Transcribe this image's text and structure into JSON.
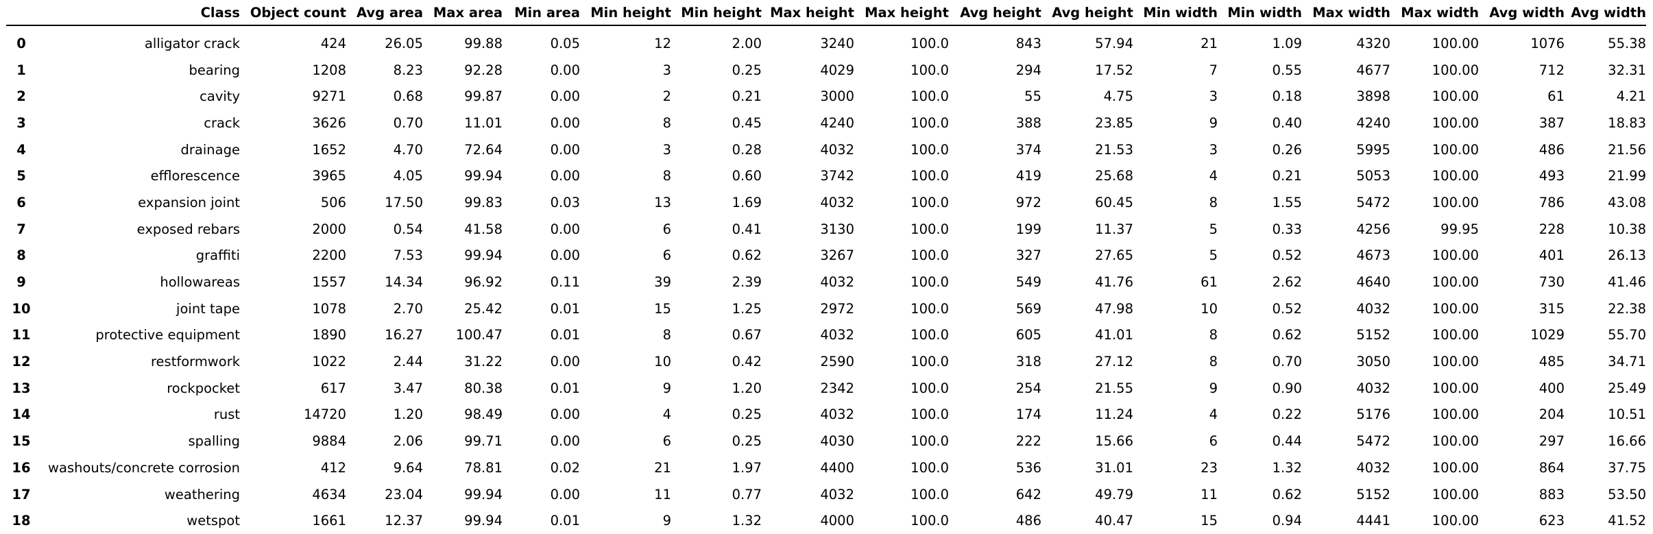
{
  "table": {
    "columns": [
      "",
      "Class",
      "Object count",
      "Avg area",
      "Max area",
      "Min area",
      "Min height",
      "Min height",
      "Max height",
      "Max height",
      "Avg height",
      "Avg height",
      "Min width",
      "Min width",
      "Max width",
      "Max width",
      "Avg width",
      "Avg width"
    ],
    "rows": [
      [
        "0",
        "alligator crack",
        "424",
        "26.05",
        "99.88",
        "0.05",
        "12",
        "2.00",
        "3240",
        "100.0",
        "843",
        "57.94",
        "21",
        "1.09",
        "4320",
        "100.00",
        "1076",
        "55.38"
      ],
      [
        "1",
        "bearing",
        "1208",
        "8.23",
        "92.28",
        "0.00",
        "3",
        "0.25",
        "4029",
        "100.0",
        "294",
        "17.52",
        "7",
        "0.55",
        "4677",
        "100.00",
        "712",
        "32.31"
      ],
      [
        "2",
        "cavity",
        "9271",
        "0.68",
        "99.87",
        "0.00",
        "2",
        "0.21",
        "3000",
        "100.0",
        "55",
        "4.75",
        "3",
        "0.18",
        "3898",
        "100.00",
        "61",
        "4.21"
      ],
      [
        "3",
        "crack",
        "3626",
        "0.70",
        "11.01",
        "0.00",
        "8",
        "0.45",
        "4240",
        "100.0",
        "388",
        "23.85",
        "9",
        "0.40",
        "4240",
        "100.00",
        "387",
        "18.83"
      ],
      [
        "4",
        "drainage",
        "1652",
        "4.70",
        "72.64",
        "0.00",
        "3",
        "0.28",
        "4032",
        "100.0",
        "374",
        "21.53",
        "3",
        "0.26",
        "5995",
        "100.00",
        "486",
        "21.56"
      ],
      [
        "5",
        "efflorescence",
        "3965",
        "4.05",
        "99.94",
        "0.00",
        "8",
        "0.60",
        "3742",
        "100.0",
        "419",
        "25.68",
        "4",
        "0.21",
        "5053",
        "100.00",
        "493",
        "21.99"
      ],
      [
        "6",
        "expansion joint",
        "506",
        "17.50",
        "99.83",
        "0.03",
        "13",
        "1.69",
        "4032",
        "100.0",
        "972",
        "60.45",
        "8",
        "1.55",
        "5472",
        "100.00",
        "786",
        "43.08"
      ],
      [
        "7",
        "exposed rebars",
        "2000",
        "0.54",
        "41.58",
        "0.00",
        "6",
        "0.41",
        "3130",
        "100.0",
        "199",
        "11.37",
        "5",
        "0.33",
        "4256",
        "99.95",
        "228",
        "10.38"
      ],
      [
        "8",
        "graffiti",
        "2200",
        "7.53",
        "99.94",
        "0.00",
        "6",
        "0.62",
        "3267",
        "100.0",
        "327",
        "27.65",
        "5",
        "0.52",
        "4673",
        "100.00",
        "401",
        "26.13"
      ],
      [
        "9",
        "hollowareas",
        "1557",
        "14.34",
        "96.92",
        "0.11",
        "39",
        "2.39",
        "4032",
        "100.0",
        "549",
        "41.76",
        "61",
        "2.62",
        "4640",
        "100.00",
        "730",
        "41.46"
      ],
      [
        "10",
        "joint tape",
        "1078",
        "2.70",
        "25.42",
        "0.01",
        "15",
        "1.25",
        "2972",
        "100.0",
        "569",
        "47.98",
        "10",
        "0.52",
        "4032",
        "100.00",
        "315",
        "22.38"
      ],
      [
        "11",
        "protective equipment",
        "1890",
        "16.27",
        "100.47",
        "0.01",
        "8",
        "0.67",
        "4032",
        "100.0",
        "605",
        "41.01",
        "8",
        "0.62",
        "5152",
        "100.00",
        "1029",
        "55.70"
      ],
      [
        "12",
        "restformwork",
        "1022",
        "2.44",
        "31.22",
        "0.00",
        "10",
        "0.42",
        "2590",
        "100.0",
        "318",
        "27.12",
        "8",
        "0.70",
        "3050",
        "100.00",
        "485",
        "34.71"
      ],
      [
        "13",
        "rockpocket",
        "617",
        "3.47",
        "80.38",
        "0.01",
        "9",
        "1.20",
        "2342",
        "100.0",
        "254",
        "21.55",
        "9",
        "0.90",
        "4032",
        "100.00",
        "400",
        "25.49"
      ],
      [
        "14",
        "rust",
        "14720",
        "1.20",
        "98.49",
        "0.00",
        "4",
        "0.25",
        "4032",
        "100.0",
        "174",
        "11.24",
        "4",
        "0.22",
        "5176",
        "100.00",
        "204",
        "10.51"
      ],
      [
        "15",
        "spalling",
        "9884",
        "2.06",
        "99.71",
        "0.00",
        "6",
        "0.25",
        "4030",
        "100.0",
        "222",
        "15.66",
        "6",
        "0.44",
        "5472",
        "100.00",
        "297",
        "16.66"
      ],
      [
        "16",
        "washouts/concrete corrosion",
        "412",
        "9.64",
        "78.81",
        "0.02",
        "21",
        "1.97",
        "4400",
        "100.0",
        "536",
        "31.01",
        "23",
        "1.32",
        "4032",
        "100.00",
        "864",
        "37.75"
      ],
      [
        "17",
        "weathering",
        "4634",
        "23.04",
        "99.94",
        "0.00",
        "11",
        "0.77",
        "4032",
        "100.0",
        "642",
        "49.79",
        "11",
        "0.62",
        "5152",
        "100.00",
        "883",
        "53.50"
      ],
      [
        "18",
        "wetspot",
        "1661",
        "12.37",
        "99.94",
        "0.01",
        "9",
        "1.32",
        "4000",
        "100.0",
        "486",
        "40.47",
        "15",
        "0.94",
        "4441",
        "100.00",
        "623",
        "41.52"
      ]
    ]
  }
}
